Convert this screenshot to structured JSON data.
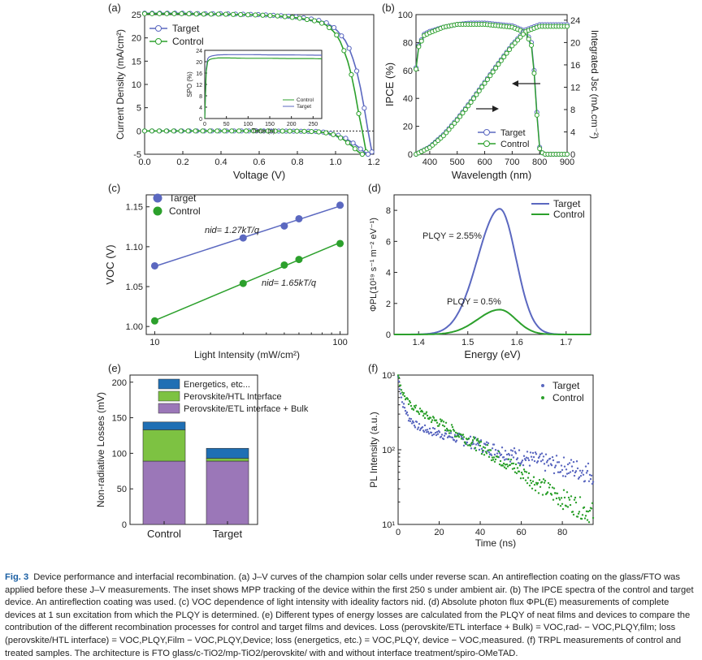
{
  "figure": {
    "label": "Fig. 3"
  },
  "caption": {
    "label": "Fig. 3",
    "text": "Device performance and interfacial recombination. (a) J–V curves of the champion solar cells under reverse scan. An antireflection coating on the glass/FTO was applied before these J–V measurements. The inset shows MPP tracking of the device within the first 250 s under ambient air. (b) The IPCE spectra of the control and target device. An antireflection coating was used. (c) VOC dependence of light intensity with ideality factors nid. (d) Absolute photon flux ΦPL(E) measurements of complete devices at 1 sun excitation from which the PLQY is determined. (e) Different types of energy losses are calculated from the PLQY of neat films and devices to compare the contribution of the different recombination processes for control and target films and devices. Loss (perovskite/ETL interface + Bulk) = VOC,rad- − VOC,PLQY,film; loss (perovskite/HTL interface) = VOC,PLQY,Film − VOC,PLQY,Device; loss (energetics, etc.) = VOC,PLQY, device − VOC,measured. (f) TRPL measurements of control and treated samples. The architecture is FTO glass/c-TiO2/mp-TiO2/perovskite/ with and without interface treatment/spiro-OMeTAD."
  },
  "colors": {
    "target": "#5b68c0",
    "control": "#2ca02c",
    "energetics": "#1f6fb4",
    "htl": "#7dc242",
    "etl": "#9b77b8"
  },
  "chart_data": [
    {
      "panel": "(a)",
      "type": "line",
      "xlabel": "Voltage (V)",
      "ylabel": "Current Density (mA/cm²)",
      "xlim": [
        0.0,
        1.2
      ],
      "ylim": [
        -5,
        25
      ],
      "xticks": [
        "0.0",
        "0.2",
        "0.4",
        "0.6",
        "0.8",
        "1.0",
        "1.2"
      ],
      "yticks": [
        "-5",
        "0",
        "5",
        "10",
        "15",
        "20",
        "25"
      ],
      "legend": [
        "Target",
        "Control"
      ],
      "series": [
        {
          "name": "Target",
          "x": [
            0,
            0.1,
            0.2,
            0.3,
            0.4,
            0.5,
            0.6,
            0.7,
            0.8,
            0.9,
            0.95,
            1.0,
            1.05,
            1.08,
            1.11,
            1.14,
            1.17,
            1.19
          ],
          "y": [
            25.3,
            25.3,
            25.3,
            25.2,
            25.2,
            25.1,
            25.0,
            24.8,
            24.5,
            23.9,
            23.3,
            22.0,
            19.5,
            17.0,
            13.0,
            7.5,
            0.0,
            -4.5
          ]
        },
        {
          "name": "Control",
          "x": [
            0,
            0.1,
            0.2,
            0.3,
            0.4,
            0.5,
            0.6,
            0.7,
            0.8,
            0.9,
            0.95,
            1.0,
            1.03,
            1.06,
            1.09,
            1.12,
            1.14,
            1.16
          ],
          "y": [
            25.2,
            25.2,
            25.2,
            25.1,
            25.1,
            25.0,
            24.9,
            24.7,
            24.3,
            23.6,
            22.8,
            21.0,
            18.8,
            15.5,
            11.0,
            4.0,
            0.0,
            -4.5
          ]
        },
        {
          "name": "Target dark",
          "x": [
            0,
            0.2,
            0.4,
            0.6,
            0.8,
            0.9,
            0.95,
            1.0,
            1.05,
            1.1,
            1.15,
            1.17
          ],
          "y": [
            0,
            0,
            0,
            0,
            -0.05,
            -0.1,
            -0.3,
            -0.7,
            -1.5,
            -2.8,
            -4.5,
            -5.0
          ]
        },
        {
          "name": "Control dark",
          "x": [
            0,
            0.2,
            0.4,
            0.6,
            0.8,
            0.9,
            0.95,
            1.0,
            1.04,
            1.08,
            1.12,
            1.14
          ],
          "y": [
            0,
            0,
            0,
            0,
            -0.05,
            -0.15,
            -0.4,
            -0.9,
            -1.8,
            -3.0,
            -4.5,
            -5.0
          ]
        }
      ],
      "inset": {
        "xlabel": "Time (s)",
        "ylabel": "SPO (%)",
        "xlim": [
          0,
          270
        ],
        "ylim": [
          0,
          24
        ],
        "xticks": [
          "0",
          "50",
          "100",
          "150",
          "200",
          "250"
        ],
        "yticks": [
          "0",
          "4",
          "8",
          "12",
          "16",
          "20",
          "24"
        ],
        "legend": [
          "Control",
          "Target"
        ],
        "series": [
          {
            "name": "Target",
            "x": [
              0,
              2,
              4,
              8,
              15,
              30,
              60,
              100,
              150,
              200,
              250,
              270
            ],
            "y": [
              0,
              12,
              20,
              21.5,
              22.0,
              22.4,
              22.5,
              22.5,
              22.4,
              22.4,
              22.3,
              22.3
            ]
          },
          {
            "name": "Control",
            "x": [
              0,
              2,
              4,
              8,
              15,
              30,
              60,
              100,
              150,
              200,
              250,
              270
            ],
            "y": [
              0,
              11,
              19,
              20.5,
              21.0,
              21.3,
              21.3,
              21.2,
              21.2,
              21.1,
              21.1,
              21.0
            ]
          }
        ]
      }
    },
    {
      "panel": "(b)",
      "type": "line",
      "xlabel": "Wavelength (nm)",
      "ylabel": "IPCE (%)",
      "y2label": "Integrated Jsc (mA.cm⁻²)",
      "xlim": [
        350,
        900
      ],
      "ylim": [
        0,
        100
      ],
      "y2lim": [
        0,
        25
      ],
      "xticks": [
        "400",
        "500",
        "600",
        "700",
        "800",
        "900"
      ],
      "yticks": [
        "0",
        "20",
        "40",
        "60",
        "80",
        "100"
      ],
      "y2ticks": [
        "0",
        "4",
        "8",
        "12",
        "16",
        "20",
        "24"
      ],
      "legend": [
        "Target",
        "Control"
      ],
      "series": [
        {
          "name": "Target IPCE",
          "x": [
            350,
            360,
            380,
            400,
            450,
            500,
            550,
            600,
            650,
            700,
            750,
            770,
            780,
            790,
            800,
            810,
            820,
            850,
            900
          ],
          "y": [
            62,
            78,
            86,
            88,
            91,
            93,
            94,
            94,
            93,
            92,
            88,
            80,
            60,
            30,
            5,
            1,
            0,
            0,
            0
          ]
        },
        {
          "name": "Control IPCE",
          "x": [
            350,
            360,
            380,
            400,
            450,
            500,
            550,
            600,
            650,
            700,
            750,
            770,
            780,
            790,
            800,
            810,
            820,
            850,
            900
          ],
          "y": [
            61,
            77,
            85,
            87,
            91,
            93,
            93,
            93,
            92,
            91,
            87,
            78,
            58,
            28,
            4,
            1,
            0,
            0,
            0
          ]
        },
        {
          "name": "Target Jsc",
          "x": [
            350,
            400,
            450,
            500,
            550,
            600,
            650,
            700,
            750,
            800,
            850,
            900
          ],
          "y2": [
            0,
            1.3,
            3.5,
            6.3,
            9.5,
            12.9,
            16.3,
            19.6,
            22.3,
            23.2,
            23.2,
            23.2
          ]
        },
        {
          "name": "Control Jsc",
          "x": [
            350,
            400,
            450,
            500,
            550,
            600,
            650,
            700,
            750,
            800,
            850,
            900
          ],
          "y2": [
            0,
            1.2,
            3.3,
            6.1,
            9.3,
            12.7,
            16.1,
            19.4,
            22.0,
            22.9,
            22.9,
            22.9
          ]
        }
      ]
    },
    {
      "panel": "(c)",
      "type": "scatter",
      "xscale": "log",
      "xlabel": "Light Intensity (mW/cm²)",
      "ylabel": "VOC (V)",
      "xlim": [
        9,
        110
      ],
      "ylim": [
        0.99,
        1.165
      ],
      "xticks": [
        "10",
        "100"
      ],
      "yticks": [
        "1.00",
        "1.05",
        "1.10",
        "1.15"
      ],
      "legend": [
        "Target",
        "Control"
      ],
      "annotations": [
        "nid= 1.27kT/q",
        "nid= 1.65kT/q"
      ],
      "series": [
        {
          "name": "Target",
          "x": [
            10,
            30,
            50,
            60,
            100
          ],
          "y": [
            1.076,
            1.111,
            1.126,
            1.135,
            1.152
          ]
        },
        {
          "name": "Control",
          "x": [
            10,
            30,
            50,
            60,
            100
          ],
          "y": [
            1.007,
            1.054,
            1.077,
            1.084,
            1.104
          ]
        }
      ]
    },
    {
      "panel": "(d)",
      "type": "line",
      "xlabel": "Energy (eV)",
      "ylabel": "ΦPL(10¹⁹ s⁻¹ m⁻² eV⁻¹)",
      "xlim": [
        1.35,
        1.75
      ],
      "ylim": [
        0,
        9
      ],
      "xticks": [
        "1.4",
        "1.5",
        "1.6",
        "1.7"
      ],
      "yticks": [
        "0",
        "2",
        "4",
        "6",
        "8"
      ],
      "legend": [
        "Target",
        "Control"
      ],
      "annotations": [
        "PLQY = 2.55%",
        "PLQY = 0.5%"
      ],
      "peak_energy": 1.565,
      "series": [
        {
          "name": "Target",
          "peak": 8.1
        },
        {
          "name": "Control",
          "peak": 1.6
        }
      ]
    },
    {
      "panel": "(e)",
      "type": "bar",
      "stacked": true,
      "ylabel": "Non-radiative Losses (mV)",
      "ylim": [
        0,
        210
      ],
      "yticks": [
        "0",
        "50",
        "100",
        "150",
        "200"
      ],
      "categories": [
        "Control",
        "Target"
      ],
      "series": [
        {
          "name": "Perovskite/ETL interface + Bulk",
          "values": [
            89,
            89
          ]
        },
        {
          "name": "Perovskite/HTL Interface",
          "values": [
            44,
            4
          ]
        },
        {
          "name": "Energetics, etc...",
          "values": [
            11,
            14
          ]
        }
      ]
    },
    {
      "panel": "(f)",
      "type": "scatter",
      "yscale": "log",
      "xlabel": "Time (ns)",
      "ylabel": "PL Intensity (a.u.)",
      "xlim": [
        0,
        95
      ],
      "ylim": [
        10,
        1000
      ],
      "xticks": [
        "0",
        "20",
        "40",
        "60",
        "80"
      ],
      "yticks": [
        "10¹",
        "10²",
        "10³"
      ],
      "legend": [
        "Target",
        "Control"
      ],
      "series": [
        {
          "name": "Target",
          "x": [
            0,
            2,
            5,
            10,
            15,
            20,
            30,
            40,
            50,
            60,
            70,
            80,
            90,
            95
          ],
          "y": [
            950,
            430,
            270,
            200,
            180,
            165,
            140,
            115,
            95,
            80,
            68,
            60,
            52,
            48
          ]
        },
        {
          "name": "Control",
          "x": [
            0,
            2,
            5,
            10,
            15,
            20,
            30,
            40,
            50,
            60,
            70,
            80,
            90,
            95
          ],
          "y": [
            950,
            600,
            420,
            330,
            270,
            230,
            160,
            110,
            75,
            50,
            32,
            22,
            16,
            14
          ]
        }
      ]
    }
  ]
}
